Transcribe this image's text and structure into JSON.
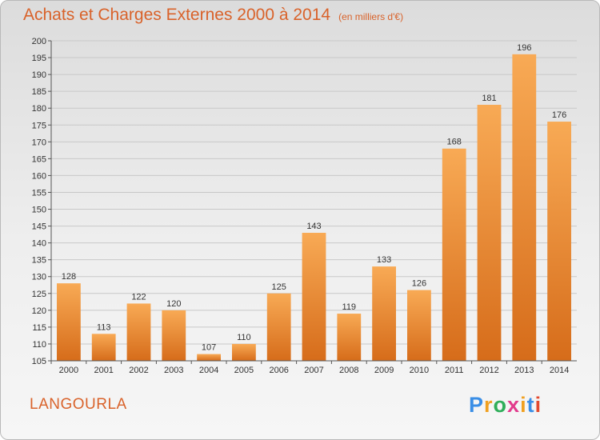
{
  "title": "Achats et Charges Externes 2000 à 2014",
  "unit": "(en milliers d'€)",
  "commune": "LANGOURLA",
  "logo": {
    "text": "Proxiti",
    "letter_colors": [
      "#3a8ee6",
      "#f0a020",
      "#2fae5a",
      "#e23a8c",
      "#f0a020",
      "#3a8ee6",
      "#e2492f"
    ]
  },
  "colors": {
    "title": "#d9622a",
    "bar_light": "#f6a651",
    "bar_dark": "#d86e1c"
  },
  "chart_data": {
    "type": "bar",
    "title": "Achats et Charges Externes 2000 à 2014",
    "categories": [
      "2000",
      "2001",
      "2002",
      "2003",
      "2004",
      "2005",
      "2006",
      "2007",
      "2008",
      "2009",
      "2010",
      "2011",
      "2012",
      "2013",
      "2014"
    ],
    "values": [
      128,
      113,
      122,
      120,
      107,
      110,
      125,
      143,
      119,
      133,
      126,
      168,
      181,
      196,
      176
    ],
    "ylim": [
      105,
      200
    ],
    "yticks": [
      105,
      110,
      115,
      120,
      125,
      130,
      135,
      140,
      145,
      150,
      155,
      160,
      165,
      170,
      175,
      180,
      185,
      190,
      195,
      200
    ],
    "grid": true,
    "xlabel": "",
    "ylabel": ""
  }
}
